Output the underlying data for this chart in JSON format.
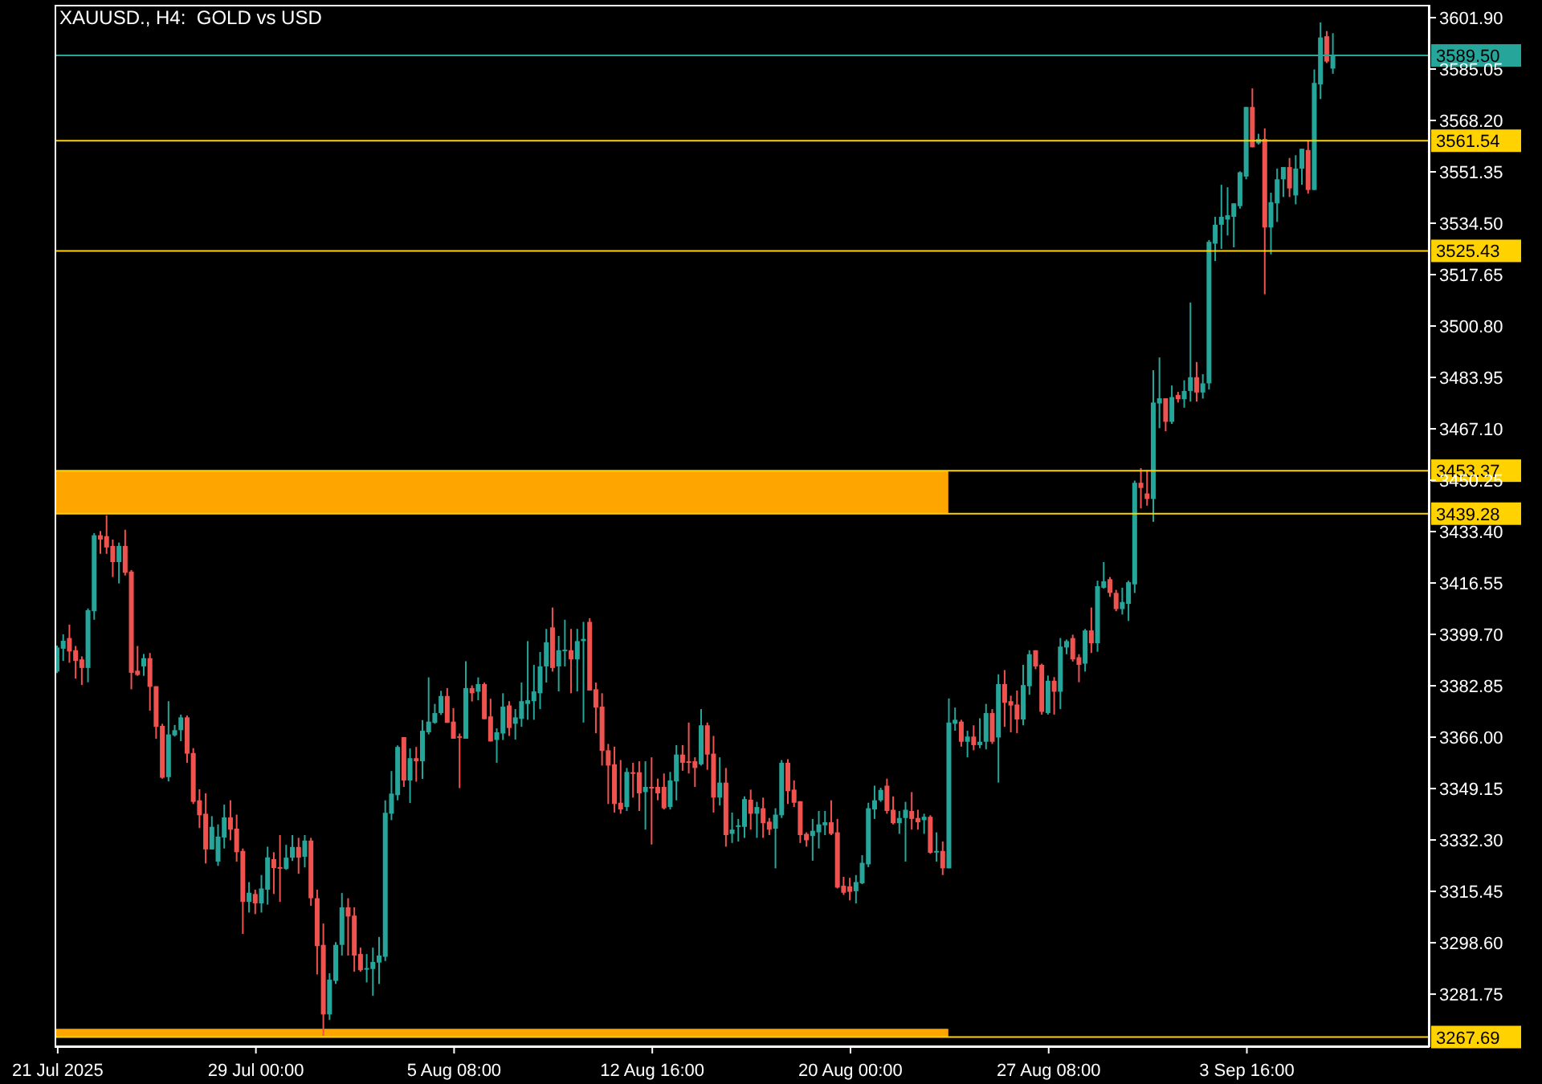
{
  "chart_data": {
    "type": "candlestick",
    "title": "XAUUSD., H4:  GOLD vs USD",
    "categories": [
      "21 Jul 2025",
      null,
      null,
      null,
      null,
      null,
      null,
      null,
      null,
      null,
      null,
      null,
      null,
      null,
      null,
      null,
      null,
      null,
      null,
      null,
      null,
      null,
      null,
      null,
      null,
      null,
      null,
      null,
      null,
      null,
      null,
      null,
      "29 Jul 00:00",
      null,
      null,
      null,
      null,
      null,
      null,
      null,
      null,
      null,
      null,
      null,
      null,
      null,
      null,
      null,
      null,
      null,
      null,
      null,
      null,
      null,
      null,
      null,
      null,
      null,
      null,
      null,
      null,
      null,
      null,
      null,
      "5 Aug 08:00",
      null,
      null,
      null,
      null,
      null,
      null,
      null,
      null,
      null,
      null,
      null,
      null,
      null,
      null,
      null,
      null,
      null,
      null,
      null,
      null,
      null,
      null,
      null,
      null,
      null,
      null,
      null,
      null,
      null,
      null,
      null,
      "12 Aug 16:00",
      null,
      null,
      null,
      null,
      null,
      null,
      null,
      null,
      null,
      null,
      null,
      null,
      null,
      null,
      null,
      null,
      null,
      null,
      null,
      null,
      null,
      null,
      null,
      null,
      null,
      null,
      null,
      null,
      null,
      null,
      null,
      "20 Aug 00:00",
      null,
      null,
      null,
      null,
      null,
      null,
      null,
      null,
      null,
      null,
      null,
      null,
      null,
      null,
      null,
      null,
      null,
      null,
      null,
      null,
      null,
      null,
      null,
      null,
      null,
      null,
      null,
      null,
      null,
      null,
      null,
      "27 Aug 08:00",
      null,
      null,
      null,
      null,
      null,
      null,
      null,
      null,
      null,
      null,
      null,
      null,
      null,
      null,
      null,
      null,
      null,
      null,
      null,
      null,
      null,
      null,
      null,
      null,
      null,
      null,
      null,
      null,
      null,
      null,
      null,
      "3 Sep 16:00",
      null,
      null,
      null,
      null,
      null,
      null,
      null,
      null,
      null,
      null,
      null,
      null,
      null,
      null,
      null,
      null,
      null,
      null,
      null,
      null,
      null,
      null,
      null,
      null,
      null,
      null,
      null,
      null,
      null
    ],
    "colors": [
      "#26a69a",
      "#26a69a",
      "#ef5350",
      "#ef5350",
      "#ef5350",
      "#26a69a",
      "#26a69a",
      "#ef5350",
      "#ef5350",
      "#ef5350",
      "#26a69a",
      "#ef5350",
      "#ef5350",
      "#ef5350",
      "#26a69a",
      "#ef5350",
      "#ef5350",
      "#ef5350",
      "#26a69a",
      "#26a69a",
      "#26a69a",
      "#ef5350",
      "#ef5350",
      "#ef5350",
      "#ef5350",
      "#26a69a",
      "#26a69a",
      "#26a69a",
      "#ef5350",
      "#ef5350",
      "#ef5350",
      "#26a69a",
      "#ef5350",
      "#26a69a",
      "#26a69a",
      "#ef5350",
      "#ef5350",
      "#26a69a",
      "#26a69a",
      "#ef5350",
      "#26a69a",
      "#ef5350",
      "#ef5350",
      "#ef5350",
      "#26a69a",
      "#26a69a",
      "#26a69a",
      "#ef5350",
      "#ef5350",
      "#ef5350",
      "#26a69a",
      "#26a69a",
      "#26a69a",
      "#26a69a",
      "#26a69a",
      "#26a69a",
      "#ef5350",
      "#26a69a",
      "#ef5350",
      "#26a69a",
      "#26a69a",
      "#26a69a",
      "#26a69a",
      "#ef5350",
      "#ef5350",
      "#ef5350",
      "#26a69a",
      "#ef5350",
      "#26a69a",
      "#ef5350",
      "#ef5350",
      "#26a69a",
      "#26a69a",
      "#ef5350",
      "#26a69a",
      "#26a69a",
      "#26a69a",
      "#26a69a",
      "#26a69a",
      "#26a69a",
      "#ef5350",
      "#26a69a",
      "#26a69a",
      "#ef5350",
      "#26a69a",
      "#26a69a",
      "#ef5350",
      "#ef5350",
      "#ef5350",
      "#ef5350",
      "#ef5350",
      "#ef5350",
      "#26a69a",
      "#ef5350",
      "#ef5350",
      "#26a69a",
      "#ef5350",
      "#ef5350",
      "#ef5350",
      "#26a69a",
      "#26a69a",
      "#ef5350",
      "#ef5350",
      "#ef5350",
      "#26a69a",
      "#ef5350",
      "#ef5350",
      "#26a69a",
      "#ef5350",
      "#26a69a",
      "#26a69a",
      "#26a69a",
      "#ef5350",
      "#26a69a",
      "#ef5350",
      "#ef5350",
      "#26a69a",
      "#26a69a",
      "#ef5350",
      "#ef5350",
      "#ef5350",
      "#ef5350",
      "#26a69a",
      "#26a69a",
      "#26a69a",
      "#ef5350",
      "#ef5350",
      "#ef5350",
      "#ef5350",
      "#26a69a",
      "#26a69a",
      "#26a69a",
      "#26a69a",
      "#26a69a",
      "#ef5350",
      "#ef5350",
      "#26a69a",
      "#26a69a",
      "#ef5350",
      "#ef5350",
      "#26a69a",
      "#ef5350",
      "#26a69a",
      "#ef5350",
      "#26a69a",
      "#26a69a",
      "#ef5350",
      "#26a69a",
      "#ef5350",
      "#26a69a",
      "#26a69a",
      "#ef5350",
      "#26a69a",
      "#ef5350",
      "#ef5350",
      "#ef5350",
      "#26a69a",
      "#26a69a",
      "#ef5350",
      "#ef5350",
      "#26a69a",
      "#ef5350",
      "#26a69a",
      "#26a69a",
      "#ef5350",
      "#ef5350",
      "#26a69a",
      "#ef5350",
      "#26a69a",
      "#26a69a",
      "#ef5350",
      "#ef5350",
      "#26a69a",
      "#26a69a",
      "#26a69a",
      "#ef5350",
      "#ef5350",
      "#26a69a",
      "#26a69a",
      "#ef5350",
      "#26a69a",
      "#ef5350",
      "#26a69a",
      "#26a69a",
      "#ef5350",
      "#26a69a",
      "#26a69a",
      "#26a69a",
      "#26a69a",
      "#26a69a",
      "#26a69a",
      "#26a69a",
      "#26a69a",
      "#ef5350",
      "#26a69a",
      "#ef5350",
      "#26a69a",
      "#26a69a",
      "#26a69a",
      "#ef5350",
      "#26a69a",
      "#26a69a",
      "#ef5350",
      "#26a69a",
      "#26a69a",
      "#ef5350",
      "#26a69a",
      null,
      null,
      null,
      null,
      null,
      null,
      null,
      null,
      null,
      null,
      null,
      null,
      null,
      null,
      null
    ],
    "ohlc": [
      [
        3387.5,
        3396,
        3387,
        3395.4
      ],
      [
        3395,
        3399.7,
        3391,
        3397.6
      ],
      [
        3398.5,
        3402.9,
        3390.4,
        3394.1
      ],
      [
        3394.5,
        3395.9,
        3385.2,
        3391
      ],
      [
        3391.5,
        3392.5,
        3383.1,
        3388.7
      ],
      [
        3388.7,
        3408.2,
        3384,
        3407.6
      ],
      [
        3407.3,
        3432.9,
        3404.5,
        3432.2
      ],
      [
        3432.2,
        3433.6,
        3426.1,
        3430.8
      ],
      [
        3431.9,
        3438.7,
        3426.1,
        3428.2
      ],
      [
        3428.7,
        3430.8,
        3418.5,
        3423.4
      ],
      [
        3423.4,
        3429.8,
        3416.4,
        3428.7
      ],
      [
        3428.7,
        3434,
        3419,
        3419.9
      ],
      [
        3420.3,
        3420.8,
        3381.7,
        3387.1
      ],
      [
        3387.8,
        3395.9,
        3386.1,
        3386.4
      ],
      [
        3389.2,
        3393.3,
        3386.1,
        3391.9
      ],
      [
        3391.9,
        3393.6,
        3374.7,
        3382.5
      ],
      [
        3382.7,
        3382.7,
        3365.5,
        3369.4
      ],
      [
        3369.7,
        3370.4,
        3352.4,
        3352.7
      ],
      [
        3352.9,
        3377.8,
        3351.5,
        3366.9
      ],
      [
        3366.6,
        3370,
        3366.2,
        3368.3
      ],
      [
        3368.3,
        3373.4,
        3364.7,
        3372.5
      ],
      [
        3372.5,
        3373.1,
        3357.6,
        3360.6
      ],
      [
        3360.8,
        3362.4,
        3344.1,
        3344.8
      ],
      [
        3345.3,
        3348.9,
        3336.2,
        3340.4
      ],
      [
        3340.9,
        3347.6,
        3324.6,
        3329.2
      ],
      [
        3329.2,
        3340.1,
        3329.2,
        3336.6
      ],
      [
        3325.2,
        3337.4,
        3323.8,
        3333.4
      ],
      [
        3333.1,
        3343.9,
        3329.5,
        3339.7
      ],
      [
        3339.7,
        3345.3,
        3332.2,
        3335.7
      ],
      [
        3336,
        3340.6,
        3325.2,
        3328.3
      ],
      [
        3328.7,
        3329.5,
        3301.5,
        3312
      ],
      [
        3312,
        3318.5,
        3308.5,
        3315
      ],
      [
        3314.6,
        3316,
        3308,
        3311.5
      ],
      [
        3311.5,
        3320.8,
        3308.5,
        3316.4
      ],
      [
        3316,
        3330.1,
        3311.1,
        3326.6
      ],
      [
        3326,
        3328.3,
        3314.6,
        3323.1
      ],
      [
        3323.4,
        3333.9,
        3312,
        3323.1
      ],
      [
        3322.8,
        3330.7,
        3322.5,
        3326.5
      ],
      [
        3326.5,
        3333.9,
        3325.4,
        3330
      ],
      [
        3330,
        3333,
        3321.2,
        3326.5
      ],
      [
        3326.8,
        3333.9,
        3323.3,
        3332.1
      ],
      [
        3332.1,
        3333,
        3310.7,
        3313.2
      ],
      [
        3313.2,
        3316,
        3288.2,
        3297.5
      ],
      [
        3297.9,
        3304.9,
        3268.1,
        3275.1
      ],
      [
        3275.1,
        3288.6,
        3273.3,
        3286.5
      ],
      [
        3286.1,
        3298.8,
        3285.1,
        3297.9
      ],
      [
        3297.9,
        3314.9,
        3294.4,
        3310.2
      ],
      [
        3310.2,
        3313.2,
        3294.4,
        3307.2
      ],
      [
        3307.5,
        3310.2,
        3289.1,
        3294.4
      ],
      [
        3294.9,
        3297,
        3289.1,
        3289.6
      ],
      [
        3290,
        3294.9,
        3285.6,
        3290.3
      ],
      [
        3290,
        3297,
        3281.2,
        3292.3
      ],
      [
        3292.1,
        3300.5,
        3285.1,
        3294.4
      ],
      [
        3294,
        3345.3,
        3292.6,
        3341.2
      ],
      [
        3340.9,
        3354.9,
        3338.8,
        3347.5
      ],
      [
        3347,
        3363.3,
        3345.3,
        3362.8
      ],
      [
        3366,
        3366,
        3349.7,
        3351.8
      ],
      [
        3351.8,
        3362.3,
        3344.4,
        3359.1
      ],
      [
        3359.1,
        3362.8,
        3351.4,
        3358.1
      ],
      [
        3358.1,
        3371.6,
        3352.3,
        3368.1
      ],
      [
        3367.6,
        3385.6,
        3366.9,
        3371.1
      ],
      [
        3370.7,
        3376.9,
        3370.4,
        3373.9
      ],
      [
        3373.9,
        3381.2,
        3373.3,
        3379.5
      ],
      [
        3379.5,
        3382.1,
        3370.7,
        3370.7
      ],
      [
        3371.1,
        3375.5,
        3365.5,
        3365.5
      ],
      [
        3366.3,
        3367.2,
        3349.3,
        3365.8
      ],
      [
        3365.5,
        3390.9,
        3365.5,
        3382.1
      ],
      [
        3382.1,
        3383,
        3377.7,
        3380.4
      ],
      [
        3380.9,
        3385.6,
        3378.1,
        3383.4
      ],
      [
        3383.4,
        3383.9,
        3371.9,
        3371.9
      ],
      [
        3372.8,
        3378.6,
        3364.6,
        3364.6
      ],
      [
        3365.1,
        3368.9,
        3357.6,
        3367.6
      ],
      [
        3367.2,
        3380.4,
        3365.1,
        3376
      ],
      [
        3376.4,
        3377.8,
        3366.4,
        3369
      ],
      [
        3370.4,
        3375.2,
        3365.2,
        3372.5
      ],
      [
        3372,
        3383.9,
        3369.4,
        3377.8
      ],
      [
        3376.9,
        3397.5,
        3371.7,
        3378.1
      ],
      [
        3377.8,
        3389.7,
        3371.7,
        3381
      ],
      [
        3380.4,
        3393.9,
        3375.2,
        3389.2
      ],
      [
        3389.2,
        3401.5,
        3383.9,
        3397.1
      ],
      [
        3402,
        3408.5,
        3387.5,
        3388.7
      ],
      [
        3389.2,
        3399.2,
        3381,
        3394.5
      ],
      [
        3394.3,
        3404.5,
        3389.2,
        3394.7
      ],
      [
        3394.5,
        3401.5,
        3380.4,
        3391.5
      ],
      [
        3391.5,
        3401.5,
        3381,
        3397.5
      ],
      [
        3397.5,
        3403.8,
        3370.8,
        3398.2
      ],
      [
        3403.8,
        3405,
        3381.3,
        3381.3
      ],
      [
        3381.7,
        3383.9,
        3367.3,
        3375.7
      ],
      [
        3376,
        3380.4,
        3356.7,
        3361.5
      ],
      [
        3361.7,
        3363.8,
        3344.1,
        3356.7
      ],
      [
        3357.1,
        3362.9,
        3341.3,
        3344.1
      ],
      [
        3344.5,
        3358.5,
        3340.9,
        3342.3
      ],
      [
        3343.1,
        3355.9,
        3341.8,
        3354.6
      ],
      [
        3354.5,
        3357.6,
        3346.2,
        3354.1
      ],
      [
        3354.5,
        3358.1,
        3341.8,
        3347.6
      ],
      [
        3348,
        3358.1,
        3335.7,
        3349.7
      ],
      [
        3349.7,
        3359.4,
        3330.8,
        3349.4
      ],
      [
        3349.7,
        3352.4,
        3345.3,
        3347.6
      ],
      [
        3349.7,
        3354.1,
        3342.3,
        3342.7
      ],
      [
        3343.1,
        3354.6,
        3342.3,
        3351.8
      ],
      [
        3351.5,
        3363.4,
        3345.3,
        3360.3
      ],
      [
        3360.3,
        3363.4,
        3355,
        3357.6
      ],
      [
        3358.1,
        3370.8,
        3354.1,
        3357.6
      ],
      [
        3358.1,
        3359.4,
        3349.7,
        3355.9
      ],
      [
        3357.1,
        3375.2,
        3356.7,
        3369.9
      ],
      [
        3369.9,
        3370.8,
        3355.3,
        3360.3
      ],
      [
        3360.6,
        3366.4,
        3341.3,
        3346.2
      ],
      [
        3346.2,
        3359.4,
        3343.6,
        3351.1
      ],
      [
        3351.1,
        3355.9,
        3330.1,
        3333.9
      ],
      [
        3334.3,
        3341.3,
        3331.3,
        3335.7
      ],
      [
        3336.7,
        3339.2,
        3331.8,
        3337.1
      ],
      [
        3336.6,
        3346.6,
        3333,
        3345.7
      ],
      [
        3345.5,
        3348.8,
        3335.7,
        3340.9
      ],
      [
        3340.9,
        3344.8,
        3333,
        3343.1
      ],
      [
        3342.7,
        3346.2,
        3333,
        3337.8
      ],
      [
        3338.3,
        3339.5,
        3333.9,
        3335.7
      ],
      [
        3336,
        3342.7,
        3323,
        3340.6
      ],
      [
        3340.4,
        3358.5,
        3339.5,
        3357.6
      ],
      [
        3357.6,
        3358.8,
        3344.1,
        3348.3
      ],
      [
        3348.8,
        3351.8,
        3343.1,
        3344.5
      ],
      [
        3345,
        3345,
        3331.3,
        3333.9
      ],
      [
        3334.3,
        3334.8,
        3330.1,
        3332.2
      ],
      [
        3333.6,
        3339.2,
        3325.5,
        3335.3
      ],
      [
        3334.8,
        3341.8,
        3329.5,
        3337.4
      ],
      [
        3337.1,
        3341.8,
        3333.9,
        3338.1
      ],
      [
        3338.1,
        3345.3,
        3333.9,
        3334.3
      ],
      [
        3334.8,
        3339.2,
        3316.4,
        3316.7
      ],
      [
        3317.3,
        3320.2,
        3314.3,
        3315
      ],
      [
        3317.1,
        3319.9,
        3312.5,
        3315.3
      ],
      [
        3315.5,
        3320.8,
        3311.5,
        3318.5
      ],
      [
        3318.1,
        3327.3,
        3317.8,
        3324.8
      ],
      [
        3324.3,
        3344.5,
        3323.4,
        3342.7
      ],
      [
        3342.3,
        3350.1,
        3339.2,
        3345.3
      ],
      [
        3345.3,
        3349.4,
        3344.8,
        3348.7
      ],
      [
        3350.1,
        3352.4,
        3340.9,
        3341.8
      ],
      [
        3342.2,
        3346.6,
        3337.4,
        3337.8
      ],
      [
        3337.8,
        3341.8,
        3334.3,
        3339.5
      ],
      [
        3339.5,
        3344.8,
        3325.2,
        3342.2
      ],
      [
        3341.8,
        3348,
        3335.7,
        3339.2
      ],
      [
        3339.5,
        3342.2,
        3335.7,
        3338.1
      ],
      [
        3338.8,
        3340.9,
        3334.3,
        3339.9
      ],
      [
        3339.9,
        3340.4,
        3327.8,
        3328.1
      ],
      [
        3328.3,
        3334.8,
        3325.2,
        3328.7
      ],
      [
        3328.7,
        3331.8,
        3320.8,
        3323
      ],
      [
        3323,
        3378.7,
        3323,
        3370.8
      ],
      [
        3370.4,
        3375.7,
        3368.1,
        3371.7
      ],
      [
        3371.1,
        3371.7,
        3362.9,
        3364.5
      ],
      [
        3364.5,
        3368.1,
        3359.4,
        3366.2
      ],
      [
        3366.2,
        3369.9,
        3361.7,
        3363.4
      ],
      [
        3363.4,
        3372.2,
        3362.4,
        3364.5
      ],
      [
        3364.5,
        3376.9,
        3362,
        3373.9
      ],
      [
        3373.9,
        3375.2,
        3363.8,
        3364.5
      ],
      [
        3365.9,
        3386.6,
        3351.1,
        3383.4
      ],
      [
        3383.4,
        3388,
        3369.4,
        3377.3
      ],
      [
        3377.8,
        3379.6,
        3367.6,
        3376.4
      ],
      [
        3376.7,
        3381.3,
        3367.3,
        3371.8
      ],
      [
        3371.8,
        3389.7,
        3369.9,
        3383.1
      ],
      [
        3382.7,
        3394.5,
        3379.9,
        3393.2
      ],
      [
        3394.5,
        3394.5,
        3388.3,
        3389.2
      ],
      [
        3389.7,
        3390.1,
        3373.4,
        3374.3
      ],
      [
        3373.9,
        3386.2,
        3373.4,
        3384.5
      ],
      [
        3384.5,
        3385.7,
        3373.4,
        3380.9
      ],
      [
        3380.9,
        3398.5,
        3375.2,
        3395.7
      ],
      [
        3395.4,
        3398,
        3393.2,
        3397.5
      ],
      [
        3398.5,
        3399.6,
        3390.8,
        3391.5
      ],
      [
        3392.2,
        3393.2,
        3384,
        3389.7
      ],
      [
        3390.1,
        3401.5,
        3387.5,
        3401
      ],
      [
        3401,
        3408.5,
        3393.6,
        3396.8
      ],
      [
        3396.8,
        3417.3,
        3394,
        3415.5
      ],
      [
        3415,
        3423.4,
        3414.7,
        3417.1
      ],
      [
        3417.8,
        3418.5,
        3412,
        3413.3
      ],
      [
        3413.3,
        3414.3,
        3407.3,
        3408
      ],
      [
        3408,
        3415,
        3406.2,
        3410.3
      ],
      [
        3409.7,
        3417.3,
        3404.1,
        3416.8
      ],
      [
        3416.1,
        3450.1,
        3413.3,
        3449.4
      ],
      [
        3449.4,
        3454.2,
        3441,
        3447.7
      ],
      [
        3445.9,
        3453.6,
        3441.9,
        3444.1
      ],
      [
        3444.1,
        3486.3,
        3436.6,
        3475.7
      ],
      [
        3475.4,
        3490.5,
        3467.3,
        3477.1
      ],
      [
        3477.1,
        3477.1,
        3466.3,
        3469.4
      ],
      [
        3469.4,
        3481.3,
        3468.7,
        3477.5
      ],
      [
        3478.2,
        3479.2,
        3475.7,
        3476.8
      ],
      [
        3476.8,
        3483,
        3474,
        3479.5
      ],
      [
        3479.5,
        3508.5,
        3476,
        3484
      ],
      [
        3484,
        3489,
        3476,
        3479
      ],
      [
        3479,
        3485,
        3477,
        3482
      ],
      [
        3482,
        3529,
        3480,
        3528.4
      ],
      [
        3527.8,
        3536.6,
        3522.1,
        3534
      ],
      [
        3534,
        3547.1,
        3526.1,
        3536.6
      ],
      [
        3535.7,
        3546.3,
        3530.5,
        3537.1
      ],
      [
        3536.6,
        3541,
        3526.6,
        3541
      ],
      [
        3540.1,
        3551.5,
        3539.3,
        3551.2
      ],
      [
        3549.8,
        3572.6,
        3548.9,
        3572.6
      ],
      [
        3572.6,
        3578.7,
        3559.4,
        3559.4
      ],
      [
        3560.7,
        3563.8,
        3560.3,
        3562.1
      ],
      [
        3562.1,
        3565.6,
        3511.2,
        3533.1
      ],
      [
        3533.1,
        3544.5,
        3524.3,
        3541.4
      ],
      [
        3541,
        3552.4,
        3534.9,
        3548.9
      ],
      [
        3548.9,
        3552.9,
        3543.1,
        3552.9
      ],
      [
        3552.9,
        3555.9,
        3543.1,
        3545.9
      ],
      [
        3543.6,
        3556.8,
        3540.7,
        3552.4
      ],
      [
        3552.4,
        3558.9,
        3547.1,
        3558.9
      ],
      [
        3558.5,
        3561.7,
        3544.2,
        3545.4
      ],
      [
        3545.4,
        3584.9,
        3545.4,
        3580.5
      ],
      [
        3580,
        3600.3,
        3575.2,
        3595.4
      ],
      [
        3595.8,
        3597.5,
        3587,
        3587.5
      ],
      [
        3585.2,
        3596.8,
        3583.5,
        3589.5
      ],
      null,
      null,
      null,
      null,
      null,
      null,
      null,
      null,
      null,
      null,
      null,
      null,
      null,
      null,
      null
    ],
    "ylim": [
      3264.4,
      3606.1
    ],
    "yticks": [
      {
        "value": 3281.75,
        "label": "3281.75"
      },
      {
        "value": 3298.6,
        "label": "3298.60"
      },
      {
        "value": 3315.45,
        "label": "3315.45"
      },
      {
        "value": 3332.3,
        "label": "3332.30"
      },
      {
        "value": 3349.15,
        "label": "3349.15"
      },
      {
        "value": 3366,
        "label": "3366.00"
      },
      {
        "value": 3382.85,
        "label": "3382.85"
      },
      {
        "value": 3399.7,
        "label": "3399.70"
      },
      {
        "value": 3416.55,
        "label": "3416.55"
      },
      {
        "value": 3433.4,
        "label": "3433.40"
      },
      {
        "value": 3450.25,
        "label": "3450.25"
      },
      {
        "value": 3467.1,
        "label": "3467.10"
      },
      {
        "value": 3483.95,
        "label": "3483.95"
      },
      {
        "value": 3500.8,
        "label": "3500.80"
      },
      {
        "value": 3517.65,
        "label": "3517.65"
      },
      {
        "value": 3534.5,
        "label": "3534.50"
      },
      {
        "value": 3551.35,
        "label": "3551.35"
      },
      {
        "value": 3568.2,
        "label": "3568.20"
      },
      {
        "value": 3585.05,
        "label": "3585.05"
      },
      {
        "value": 3601.9,
        "label": "3601.90"
      }
    ],
    "bands": [
      {
        "axis": "y",
        "from": 3439.28,
        "to": 3453.37,
        "color": "#ffa500"
      },
      {
        "axis": "y",
        "from": 3267.69,
        "to": 3270.4,
        "color": "#ffa500"
      }
    ],
    "ref_lines": [
      {
        "axis": "y",
        "value": 3589.5,
        "label": "3589.50",
        "color": "#26a69a"
      },
      {
        "axis": "y",
        "value": 3561.54,
        "label": "3561.54",
        "color": "#ffd200"
      },
      {
        "axis": "y",
        "value": 3525.43,
        "label": "3525.43",
        "color": "#ffd200"
      },
      {
        "axis": "y",
        "value": 3453.37,
        "label": "3453.37",
        "color": "#ffd200"
      },
      {
        "axis": "y",
        "value": 3439.28,
        "label": "3439.28",
        "color": "#ffd200"
      },
      {
        "axis": "y",
        "value": 3267.69,
        "label": "3267.69",
        "color": "#ffd200"
      }
    ]
  }
}
